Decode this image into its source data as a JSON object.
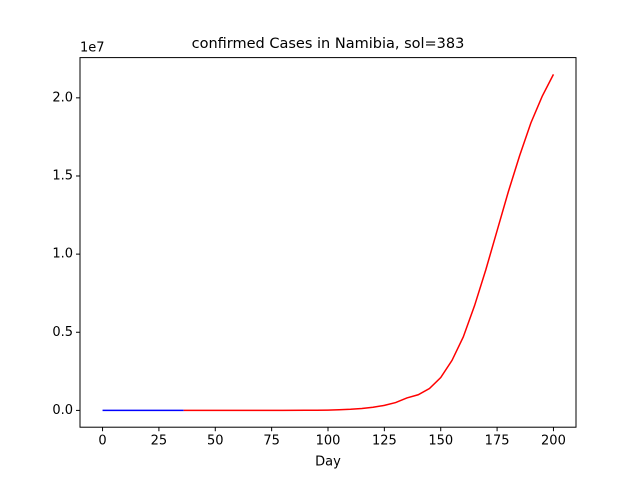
{
  "chart_data": {
    "type": "line",
    "title": "confirmed Cases in Namibia, sol=383",
    "xlabel": "Day",
    "y_offset_label": "1e7",
    "xlim": [
      -10,
      210
    ],
    "ylim": [
      -0.1075,
      2.2575
    ],
    "xticks": [
      0,
      25,
      50,
      75,
      100,
      125,
      150,
      175,
      200
    ],
    "yticks": [
      {
        "value": 0,
        "label": "0.0"
      },
      {
        "value": 0.5,
        "label": "0.5"
      },
      {
        "value": 1,
        "label": "1.0"
      },
      {
        "value": 1.5,
        "label": "1.5"
      },
      {
        "value": 2,
        "label": "2.0"
      }
    ],
    "series": [
      {
        "color": "#0000ff",
        "x": [
          0,
          5,
          10,
          15,
          20,
          25,
          30,
          36
        ],
        "values": [
          0,
          0,
          0,
          0,
          0,
          0,
          0,
          0
        ]
      },
      {
        "color": "#ff0000",
        "x": [
          36,
          40,
          50,
          60,
          70,
          80,
          90,
          95,
          100,
          105,
          110,
          115,
          120,
          125,
          130,
          135,
          140,
          145,
          150,
          155,
          160,
          165,
          170,
          175,
          180,
          185,
          190,
          195,
          200
        ],
        "values": [
          0,
          0,
          0,
          0,
          0,
          0,
          0.001,
          0.001,
          0.002,
          0.004,
          0.007,
          0.012,
          0.02,
          0.032,
          0.05,
          0.08,
          0.1,
          0.14,
          0.21,
          0.32,
          0.47,
          0.67,
          0.9,
          1.15,
          1.4,
          1.63,
          1.84,
          2.01,
          2.15
        ]
      }
    ]
  }
}
